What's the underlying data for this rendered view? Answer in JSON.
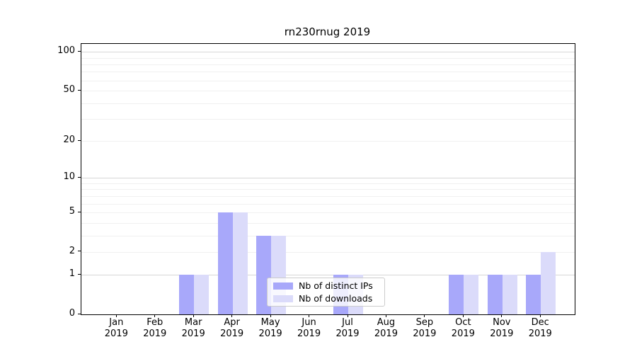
{
  "title": "rn230rnug 2019",
  "colors": {
    "distinct_ips": "#a8a8fa",
    "downloads": "#dbdbfa",
    "grid_major": "#d6d6d6",
    "grid_minor": "#f0f0f0",
    "axis": "#000000",
    "legend_border": "#cccccc"
  },
  "chart_data": {
    "type": "bar",
    "title": "rn230rnug 2019",
    "scale": "log1p",
    "categories": [
      "Jan",
      "Feb",
      "Mar",
      "Apr",
      "May",
      "Jun",
      "Jul",
      "Aug",
      "Sep",
      "Oct",
      "Nov",
      "Dec"
    ],
    "x_year_line": "2019",
    "series": [
      {
        "name": "Nb of distinct IPs",
        "color": "#a8a8fa",
        "values": [
          0,
          0,
          1,
          5,
          3,
          0,
          1,
          0,
          0,
          1,
          1,
          1
        ]
      },
      {
        "name": "Nb of downloads",
        "color": "#dbdbfa",
        "values": [
          0,
          0,
          1,
          5,
          3,
          0,
          1,
          0,
          0,
          1,
          1,
          2
        ]
      }
    ],
    "y_ticks": [
      0,
      1,
      2,
      5,
      10,
      20,
      50,
      100
    ],
    "y_gridlines": {
      "major": [
        1,
        10,
        100
      ],
      "minor": [
        2,
        3,
        4,
        5,
        6,
        7,
        8,
        9,
        20,
        30,
        40,
        50,
        60,
        70,
        80,
        90
      ]
    },
    "ylim": [
      0,
      115
    ],
    "xlabel": "",
    "ylabel": "",
    "grid": true,
    "legend_position": "lower-center"
  }
}
